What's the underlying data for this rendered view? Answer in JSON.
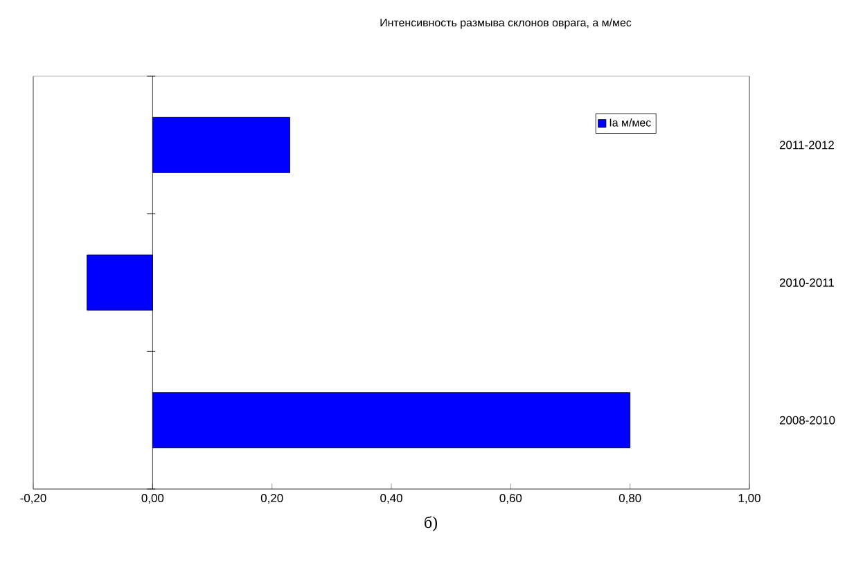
{
  "chart_data": {
    "type": "bar",
    "orientation": "horizontal",
    "title": "Интенсивность размыва склонов оврага, а м/мес",
    "categories": [
      "2011-2012",
      "2010-2011",
      "2008-2010"
    ],
    "series": [
      {
        "name": "Ia м/мес",
        "color": "#0000ff",
        "values": [
          0.23,
          -0.11,
          0.8
        ]
      }
    ],
    "xlim": [
      -0.2,
      1.0
    ],
    "xticks": [
      {
        "value": -0.2,
        "label": "-0,20"
      },
      {
        "value": 0,
        "label": "0,00"
      },
      {
        "value": 0.2,
        "label": "0,20"
      },
      {
        "value": 0.4,
        "label": "0,40"
      },
      {
        "value": 0.6,
        "label": "0,60"
      },
      {
        "value": 0.8,
        "label": "0,80"
      },
      {
        "value": 1.0,
        "label": "1,00"
      }
    ],
    "legend": "top right",
    "annotations": [
      "б)"
    ]
  }
}
